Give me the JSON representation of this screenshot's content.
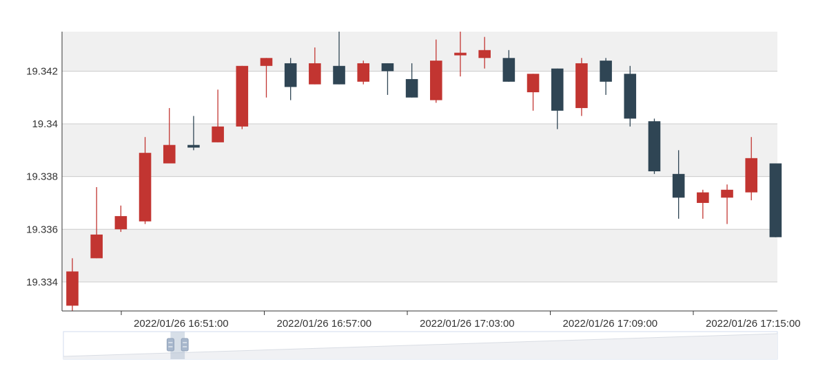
{
  "chart_data": {
    "type": "candlestick",
    "title": "",
    "xlabel": "",
    "ylabel": "",
    "x_ticks": [
      "2022/01/26 16:51:00",
      "2022/01/26 16:57:00",
      "2022/01/26 17:03:00",
      "2022/01/26 17:09:00",
      "2022/01/26 17:15:00"
    ],
    "y_ticks": [
      "19.334",
      "19.336",
      "19.338",
      "19.34",
      "19.342"
    ],
    "ylim": [
      19.3329,
      19.3435
    ],
    "grid": true,
    "bands": "alternating",
    "colors": {
      "up": "#c23531",
      "down": "#2f4554",
      "grid": "#cccccc",
      "band": "#f0f0f0",
      "axis": "#333333"
    },
    "candles": [
      {
        "o": 19.3331,
        "c": 19.3344,
        "h": 19.3349,
        "l": 19.3329
      },
      {
        "o": 19.3349,
        "c": 19.3358,
        "h": 19.3376,
        "l": 19.3349
      },
      {
        "o": 19.336,
        "c": 19.3365,
        "h": 19.3369,
        "l": 19.3359
      },
      {
        "o": 19.3363,
        "c": 19.3389,
        "h": 19.3395,
        "l": 19.3362
      },
      {
        "o": 19.3385,
        "c": 19.3392,
        "h": 19.3406,
        "l": 19.3385
      },
      {
        "o": 19.3392,
        "c": 19.3391,
        "h": 19.3403,
        "l": 19.339
      },
      {
        "o": 19.3393,
        "c": 19.3399,
        "h": 19.3413,
        "l": 19.3393
      },
      {
        "o": 19.3399,
        "c": 19.3422,
        "h": 19.3422,
        "l": 19.3398
      },
      {
        "o": 19.3422,
        "c": 19.3425,
        "h": 19.3425,
        "l": 19.341
      },
      {
        "o": 19.3423,
        "c": 19.3414,
        "h": 19.3425,
        "l": 19.3409
      },
      {
        "o": 19.3415,
        "c": 19.3423,
        "h": 19.3429,
        "l": 19.3415
      },
      {
        "o": 19.3422,
        "c": 19.3415,
        "h": 19.3435,
        "l": 19.3415
      },
      {
        "o": 19.3416,
        "c": 19.3423,
        "h": 19.3424,
        "l": 19.3415
      },
      {
        "o": 19.3423,
        "c": 19.342,
        "h": 19.3423,
        "l": 19.3411
      },
      {
        "o": 19.3417,
        "c": 19.341,
        "h": 19.3423,
        "l": 19.341
      },
      {
        "o": 19.3409,
        "c": 19.3424,
        "h": 19.3432,
        "l": 19.3408
      },
      {
        "o": 19.3426,
        "c": 19.3427,
        "h": 19.3435,
        "l": 19.3418
      },
      {
        "o": 19.3425,
        "c": 19.3428,
        "h": 19.3433,
        "l": 19.3421
      },
      {
        "o": 19.3425,
        "c": 19.3416,
        "h": 19.3428,
        "l": 19.3416
      },
      {
        "o": 19.3412,
        "c": 19.3419,
        "h": 19.3419,
        "l": 19.3405
      },
      {
        "o": 19.3421,
        "c": 19.3405,
        "h": 19.3421,
        "l": 19.3398
      },
      {
        "o": 19.3406,
        "c": 19.3423,
        "h": 19.3425,
        "l": 19.3403
      },
      {
        "o": 19.3424,
        "c": 19.3416,
        "h": 19.3425,
        "l": 19.3411
      },
      {
        "o": 19.3419,
        "c": 19.3402,
        "h": 19.3422,
        "l": 19.3399
      },
      {
        "o": 19.3401,
        "c": 19.3382,
        "h": 19.3402,
        "l": 19.3381
      },
      {
        "o": 19.3381,
        "c": 19.3372,
        "h": 19.339,
        "l": 19.3364
      },
      {
        "o": 19.337,
        "c": 19.3374,
        "h": 19.3375,
        "l": 19.3364
      },
      {
        "o": 19.3372,
        "c": 19.3375,
        "h": 19.3377,
        "l": 19.3362
      },
      {
        "o": 19.3374,
        "c": 19.3387,
        "h": 19.3395,
        "l": 19.3371
      },
      {
        "o": 19.3385,
        "c": 19.3357,
        "h": 19.3385,
        "l": 19.3357
      }
    ]
  },
  "data_zoom": {
    "start": 0.15,
    "end": 0.17
  }
}
